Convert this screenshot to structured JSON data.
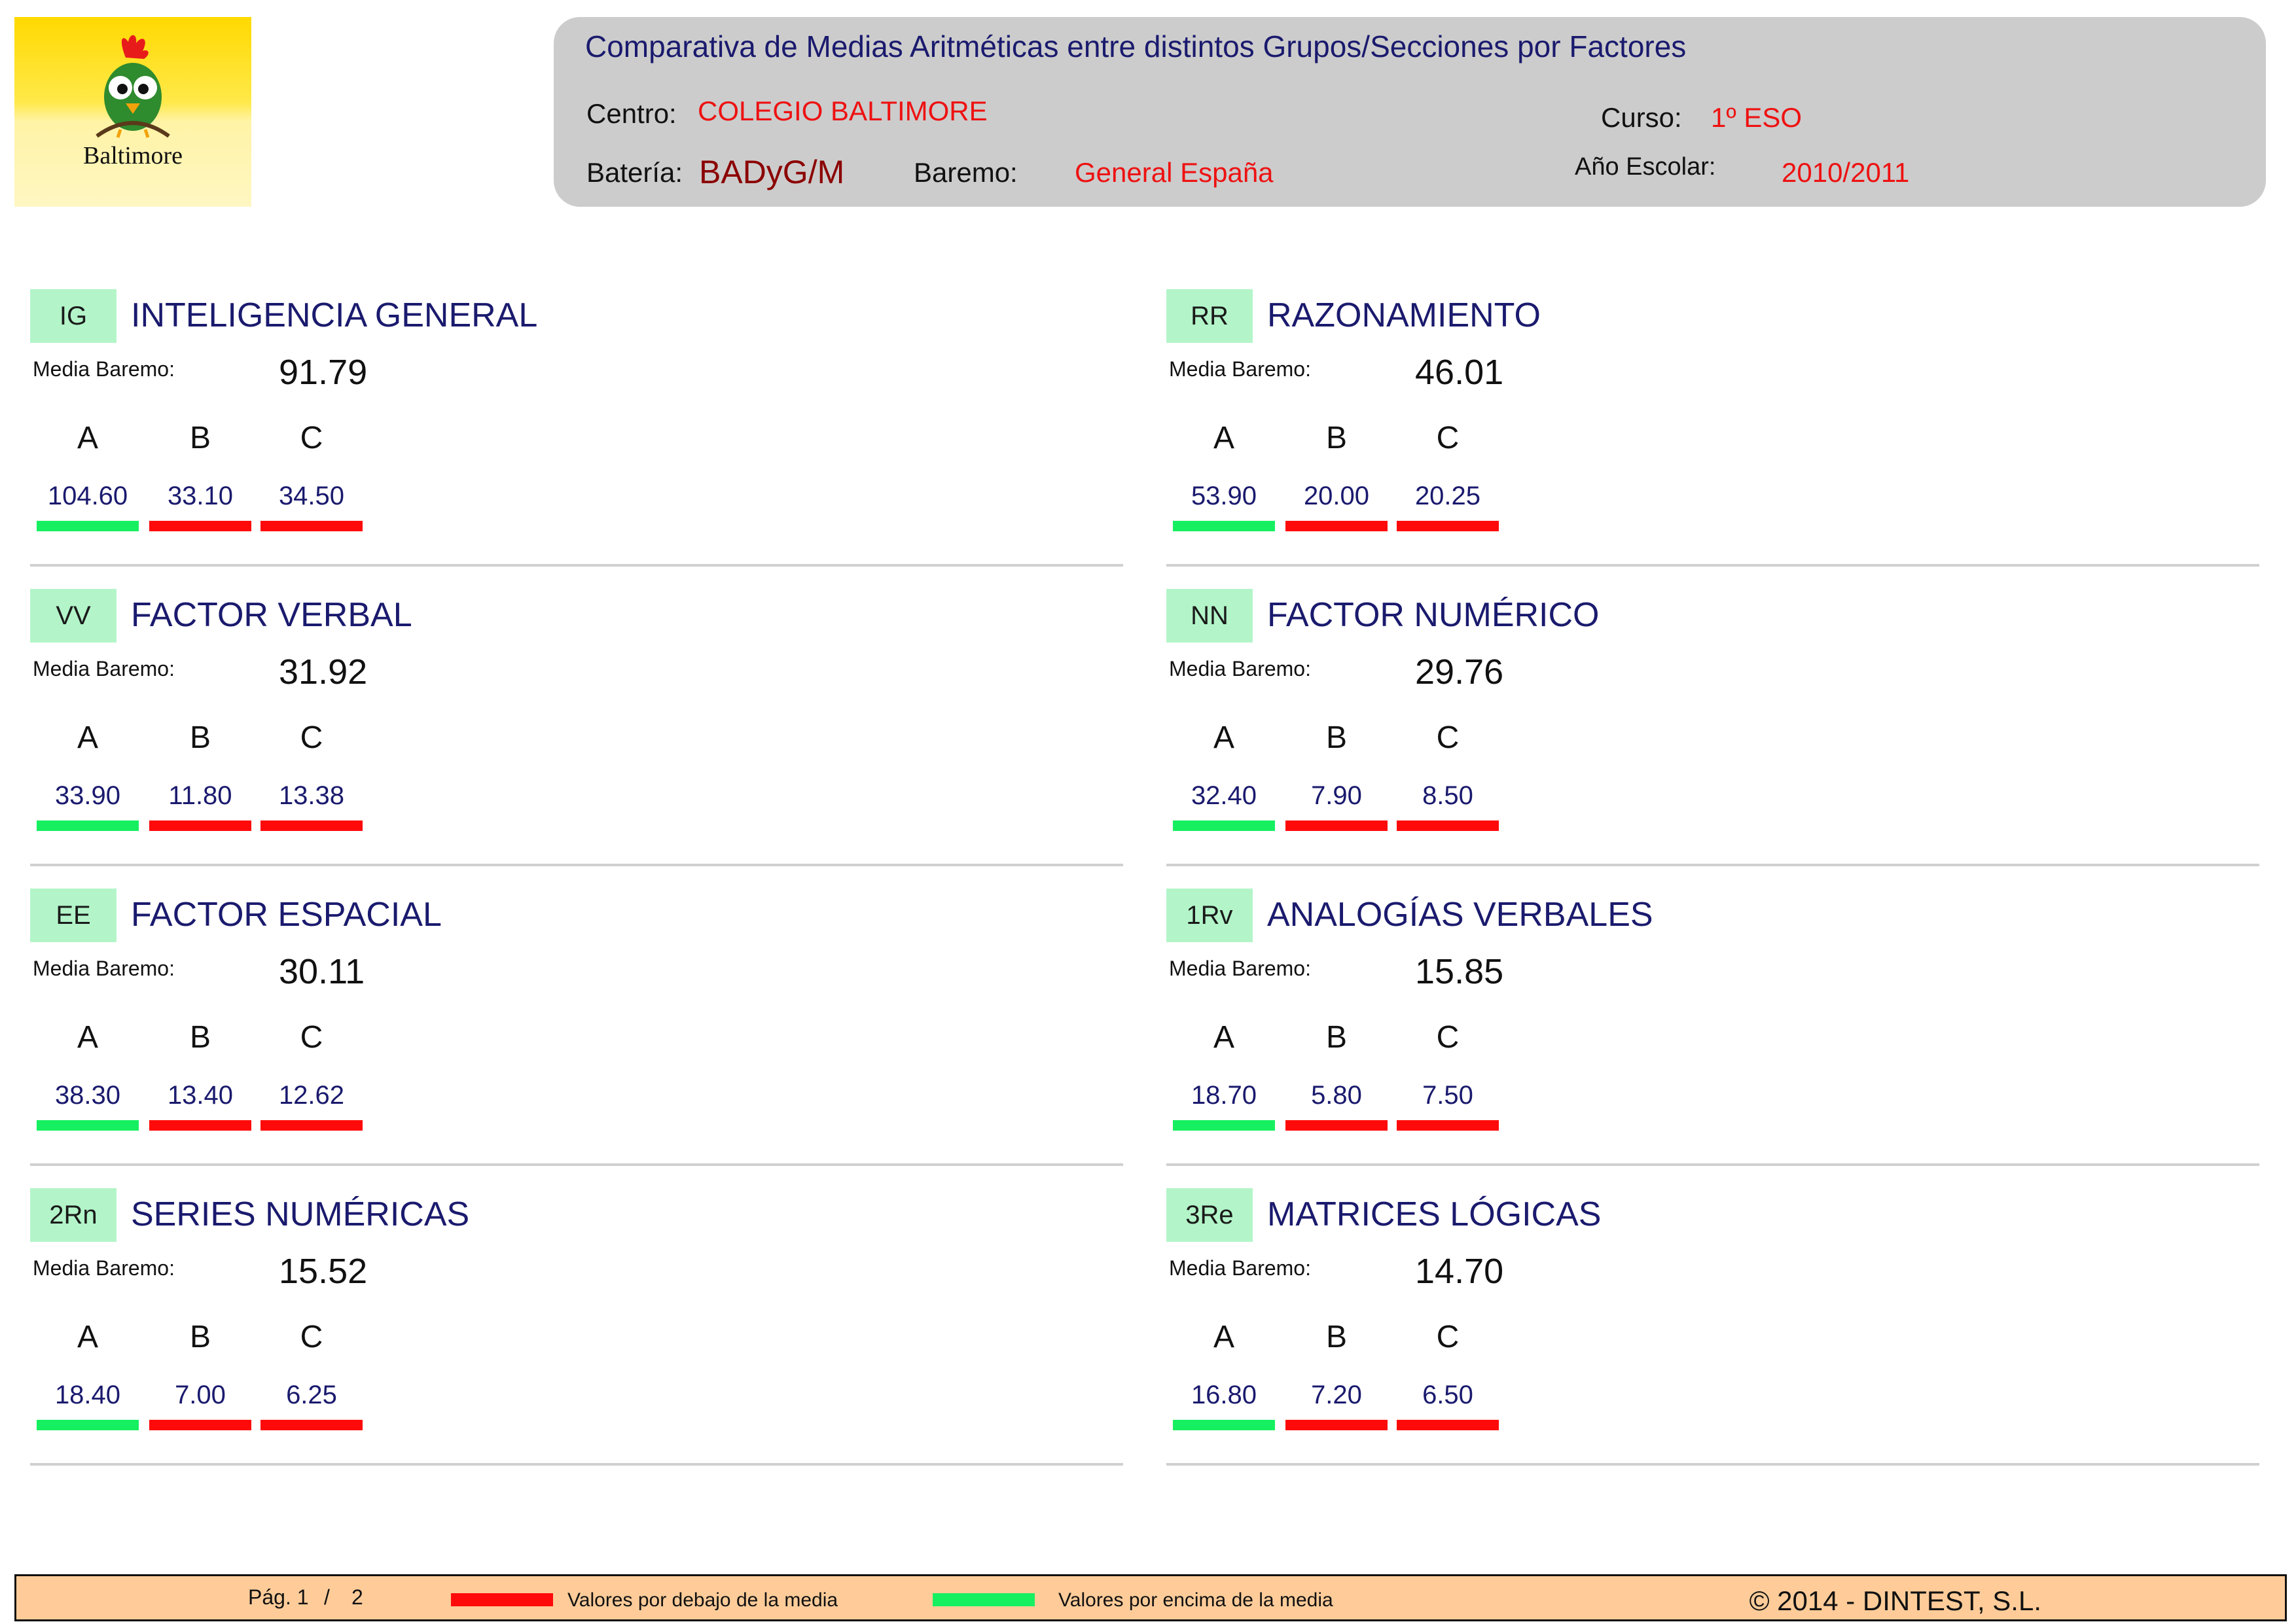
{
  "colors": {
    "above": "#16f060",
    "below": "#ff0a0a",
    "code_bg": "#b3f5c9",
    "header_bg": "#cccccc",
    "footer_bg": "#ffcc99"
  },
  "logo": {
    "text": "Baltimore",
    "icon": "rooster-bird-logo"
  },
  "header": {
    "title": "Comparativa de Medias Aritméticas entre distintos Grupos/Secciones por Factores",
    "centro_label": "Centro:",
    "centro_value": "COLEGIO BALTIMORE",
    "curso_label": "Curso:",
    "curso_value": "1º ESO",
    "bateria_label": "Batería:",
    "bateria_value": "BADyG/M",
    "baremo_label": "Baremo:",
    "baremo_value": "General España",
    "anio_label": "Año Escolar:",
    "anio_value": "2010/2011"
  },
  "media_label": "Media Baremo:",
  "sections": [
    {
      "code": "IG",
      "title": "INTELIGENCIA GENERAL",
      "media": "91.79",
      "groups": [
        {
          "letter": "A",
          "value": "104.60",
          "above": true
        },
        {
          "letter": "B",
          "value": "33.10",
          "above": false
        },
        {
          "letter": "C",
          "value": "34.50",
          "above": false
        }
      ]
    },
    {
      "code": "RR",
      "title": "RAZONAMIENTO",
      "media": "46.01",
      "groups": [
        {
          "letter": "A",
          "value": "53.90",
          "above": true
        },
        {
          "letter": "B",
          "value": "20.00",
          "above": false
        },
        {
          "letter": "C",
          "value": "20.25",
          "above": false
        }
      ]
    },
    {
      "code": "VV",
      "title": "FACTOR VERBAL",
      "media": "31.92",
      "groups": [
        {
          "letter": "A",
          "value": "33.90",
          "above": true
        },
        {
          "letter": "B",
          "value": "11.80",
          "above": false
        },
        {
          "letter": "C",
          "value": "13.38",
          "above": false
        }
      ]
    },
    {
      "code": "NN",
      "title": "FACTOR NUMÉRICO",
      "media": "29.76",
      "groups": [
        {
          "letter": "A",
          "value": "32.40",
          "above": true
        },
        {
          "letter": "B",
          "value": "7.90",
          "above": false
        },
        {
          "letter": "C",
          "value": "8.50",
          "above": false
        }
      ]
    },
    {
      "code": "EE",
      "title": "FACTOR ESPACIAL",
      "media": "30.11",
      "groups": [
        {
          "letter": "A",
          "value": "38.30",
          "above": true
        },
        {
          "letter": "B",
          "value": "13.40",
          "above": false
        },
        {
          "letter": "C",
          "value": "12.62",
          "above": false
        }
      ]
    },
    {
      "code": "1Rv",
      "title": "ANALOGÍAS VERBALES",
      "media": "15.85",
      "groups": [
        {
          "letter": "A",
          "value": "18.70",
          "above": true
        },
        {
          "letter": "B",
          "value": "5.80",
          "above": false
        },
        {
          "letter": "C",
          "value": "7.50",
          "above": false
        }
      ]
    },
    {
      "code": "2Rn",
      "title": "SERIES NUMÉRICAS",
      "media": "15.52",
      "groups": [
        {
          "letter": "A",
          "value": "18.40",
          "above": true
        },
        {
          "letter": "B",
          "value": "7.00",
          "above": false
        },
        {
          "letter": "C",
          "value": "6.25",
          "above": false
        }
      ]
    },
    {
      "code": "3Re",
      "title": "MATRICES LÓGICAS",
      "media": "14.70",
      "groups": [
        {
          "letter": "A",
          "value": "16.80",
          "above": true
        },
        {
          "letter": "B",
          "value": "7.20",
          "above": false
        },
        {
          "letter": "C",
          "value": "6.50",
          "above": false
        }
      ]
    }
  ],
  "footer": {
    "page_label": "Pág. 1",
    "page_sep": "/",
    "page_total": "2",
    "legend_below": "Valores por debajo de la media",
    "legend_above": "Valores por encima de la media",
    "copyright": "© 2014 - DINTEST, S.L."
  }
}
